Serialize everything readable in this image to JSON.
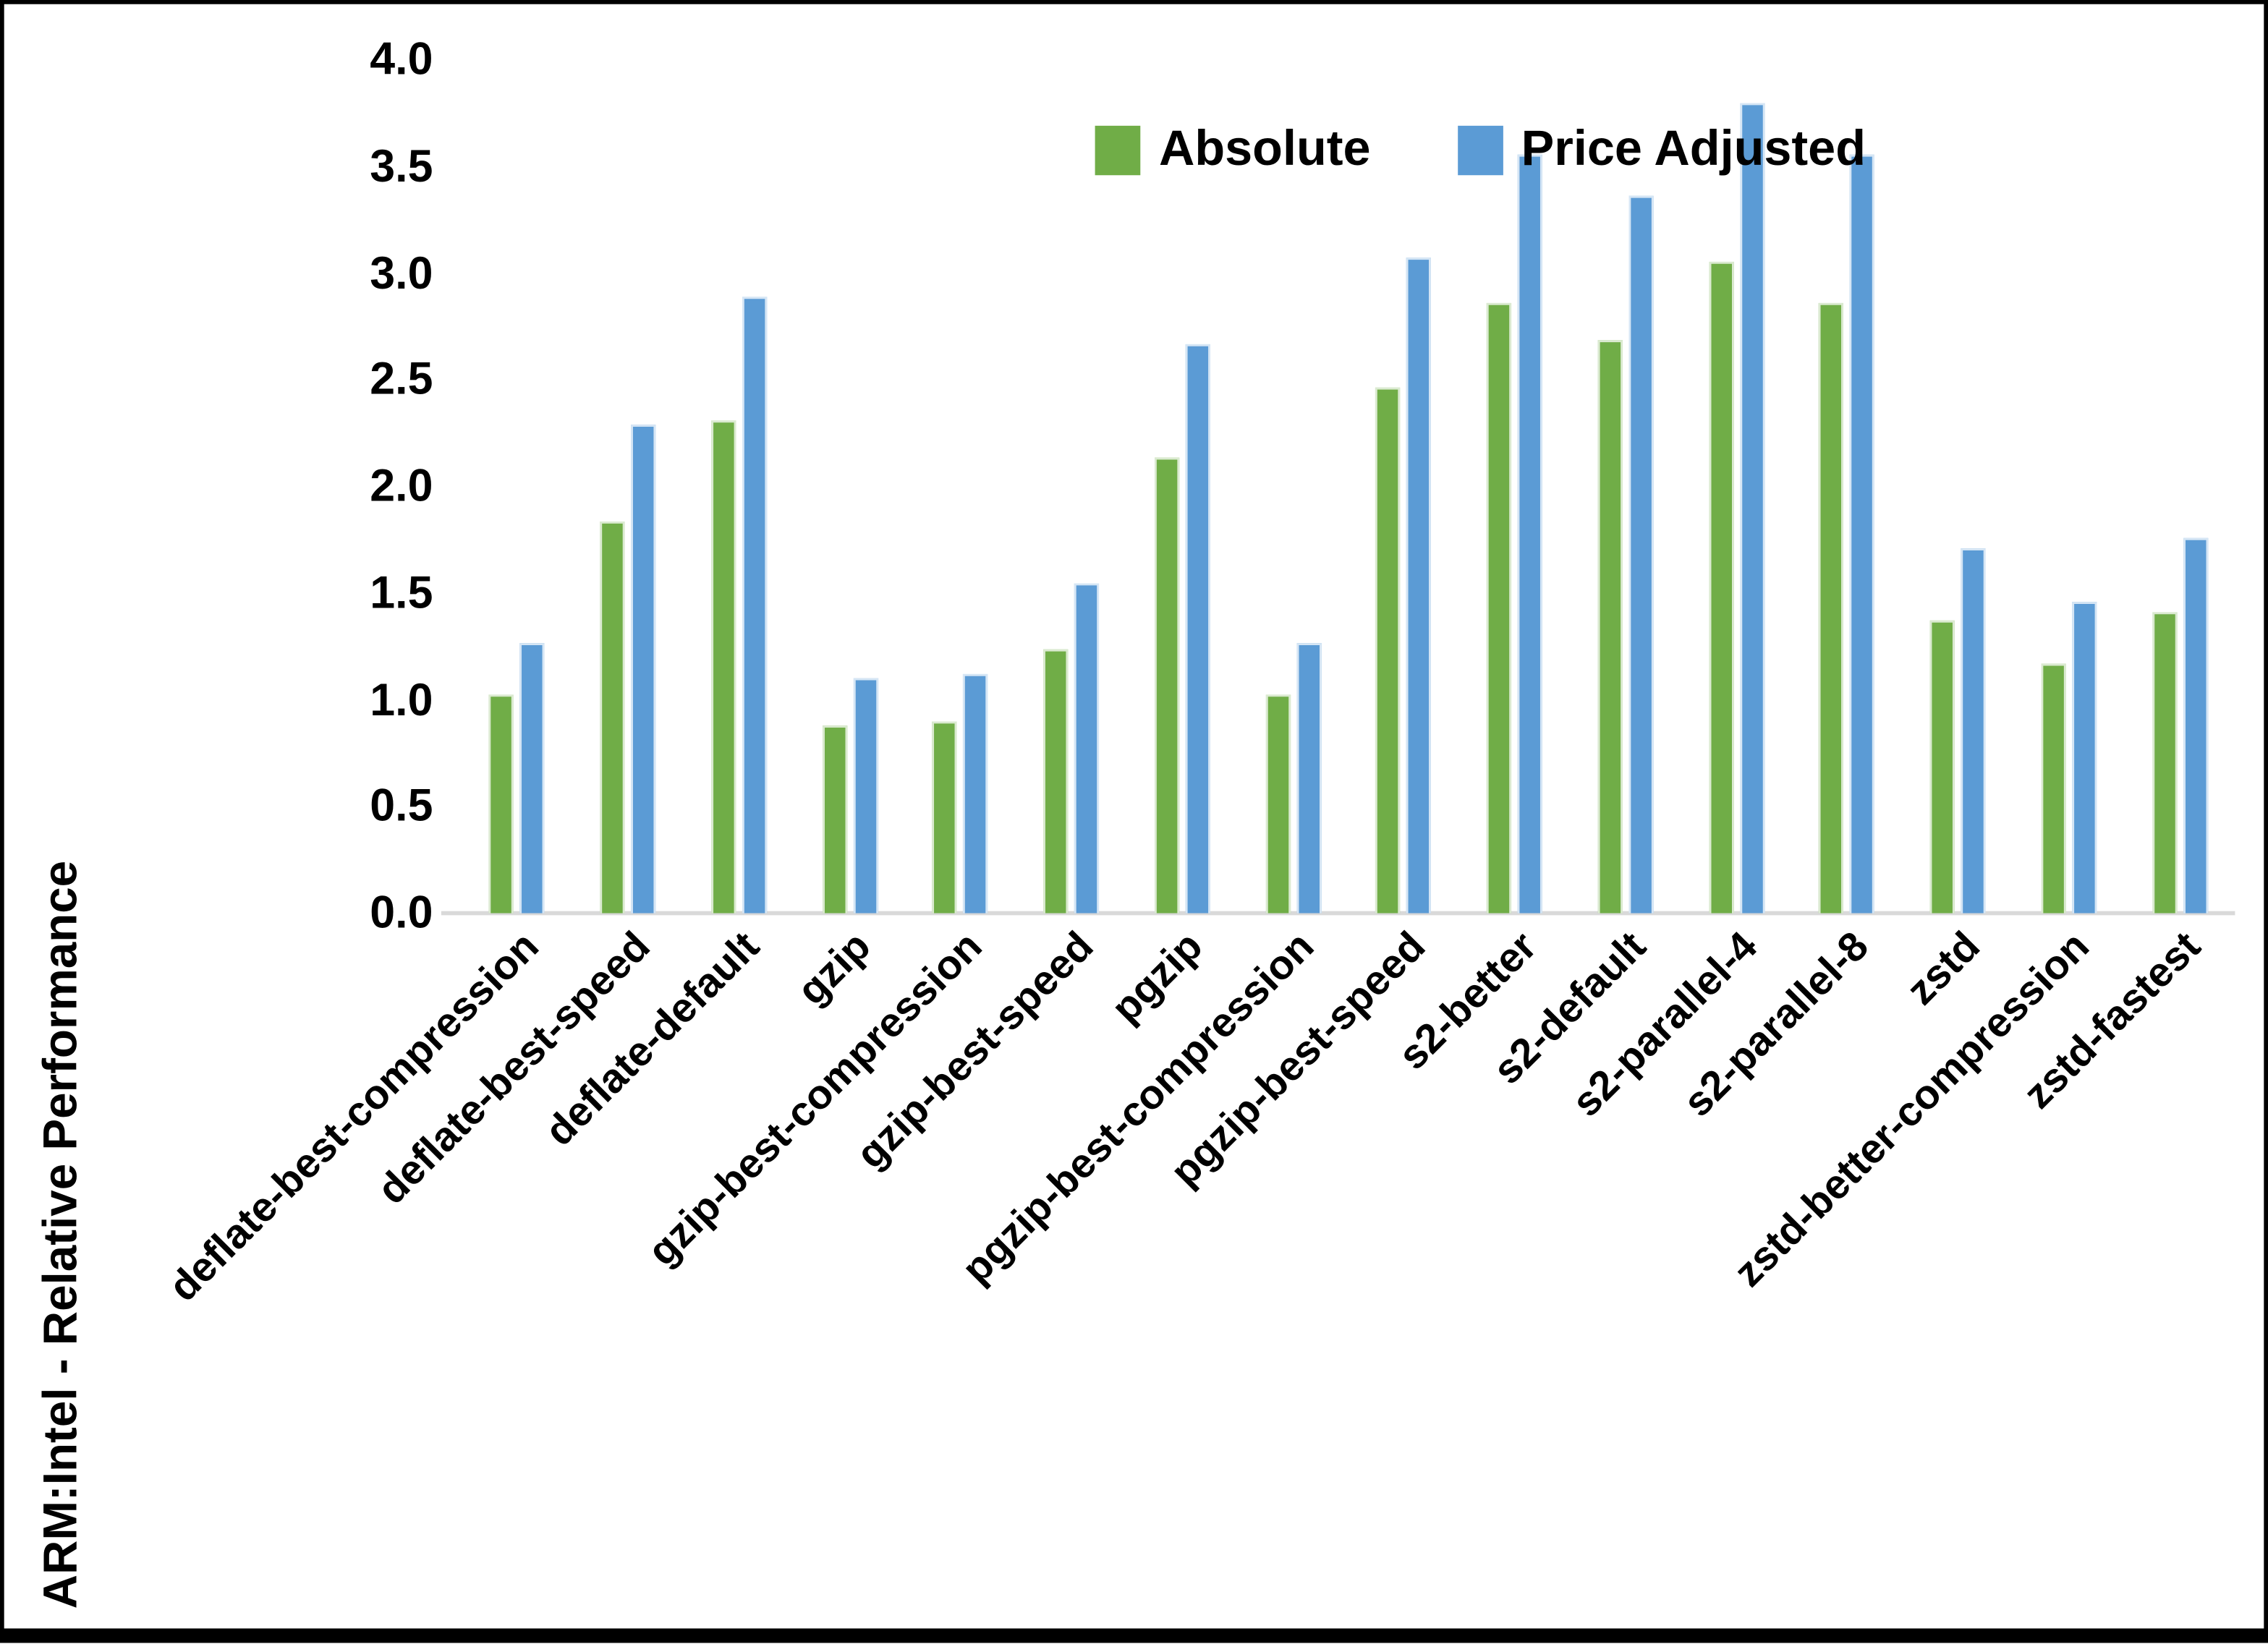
{
  "chart_data": {
    "type": "bar",
    "title": "",
    "xlabel": "",
    "ylabel": "ARM:Intel - Relative Performance",
    "ylim": [
      0.0,
      4.0
    ],
    "ytick_step": 0.5,
    "grid": false,
    "legend_position": "top-inside",
    "categories": [
      "deflate-best-compression",
      "deflate-best-speed",
      "deflate-default",
      "gzip",
      "gzip-best-compression",
      "gzip-best-speed",
      "pgzip",
      "pgzip-best-compression",
      "pgzip-best-speed",
      "s2-better",
      "s2-default",
      "s2-parallel-4",
      "s2-parallel-8",
      "zstd",
      "zstd-better-compression",
      "zstd-fastest"
    ],
    "series": [
      {
        "name": "Absolute",
        "color": "#70AD47",
        "values": [
          1.02,
          1.84,
          2.31,
          0.88,
          0.9,
          1.24,
          2.14,
          1.02,
          2.46,
          2.86,
          2.69,
          3.05,
          2.86,
          1.37,
          1.17,
          1.41
        ]
      },
      {
        "name": "Price Adjusted",
        "color": "#5B9BD5",
        "values": [
          1.27,
          2.29,
          2.89,
          1.1,
          1.12,
          1.55,
          2.67,
          1.27,
          3.07,
          3.56,
          3.36,
          3.8,
          3.56,
          1.71,
          1.46,
          1.76
        ]
      }
    ],
    "y_tick_labels": [
      "4.0",
      "3.5",
      "3.0",
      "2.5",
      "2.0",
      "1.5",
      "1.0",
      "0.5",
      "0.0"
    ]
  },
  "colors": {
    "axis_line": "#d9d9d9",
    "text": "#000000",
    "frame": "#000000",
    "background": "#ffffff"
  }
}
